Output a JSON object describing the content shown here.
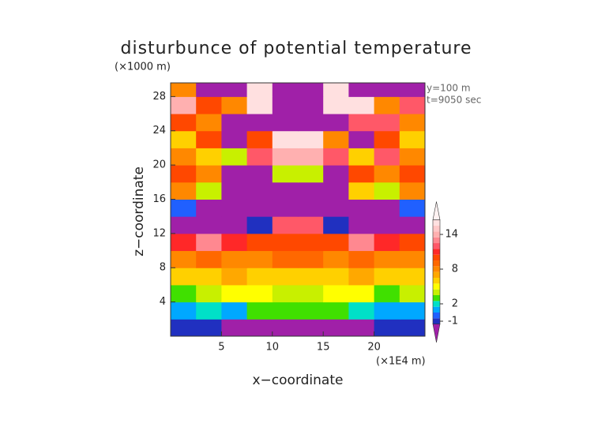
{
  "chart_data": {
    "type": "contour",
    "title": "disturbunce of potential temperature",
    "y_unit": "(×1000 m)",
    "x_unit": "(×1E4 m)",
    "annotations": [
      "y=100 m",
      "t=9050 sec"
    ],
    "xlabel": "x−coordinate",
    "ylabel": "z−coordinate",
    "xlim": [
      0,
      25
    ],
    "ylim": [
      0,
      29.6
    ],
    "xticks": [
      5,
      10,
      15,
      20
    ],
    "yticks": [
      4,
      8,
      12,
      16,
      20,
      24,
      28
    ],
    "x": [
      1.25,
      3.75,
      6.25,
      8.75,
      11.25,
      13.75,
      16.25,
      18.75,
      21.25,
      23.75
    ],
    "y": [
      1,
      3,
      5,
      7,
      9,
      11,
      13,
      15,
      17,
      19,
      21,
      23,
      25,
      27,
      29
    ],
    "z": [
      [
        -1,
        -1,
        -2,
        -2,
        -2,
        -2,
        -2,
        -2,
        -1,
        -1
      ],
      [
        1,
        2,
        1,
        3,
        3,
        3,
        3,
        2,
        1,
        1
      ],
      [
        3,
        4,
        5,
        5,
        4,
        4,
        5,
        5,
        3,
        4
      ],
      [
        6,
        6,
        7,
        6,
        6,
        6,
        6,
        7,
        6,
        6
      ],
      [
        8,
        9,
        8,
        8,
        9,
        9,
        8,
        9,
        8,
        8
      ],
      [
        11,
        13,
        11,
        10,
        10,
        10,
        10,
        13,
        11,
        10
      ],
      [
        -2,
        -2,
        -2,
        -1,
        12,
        12,
        -1,
        -2,
        -2,
        -2
      ],
      [
        0,
        -2,
        -2,
        -2,
        -2,
        -2,
        -2,
        -2,
        -2,
        0
      ],
      [
        8,
        4,
        -2,
        -2,
        -2,
        -2,
        -2,
        6,
        4,
        8
      ],
      [
        10,
        8,
        -2,
        -2,
        4,
        4,
        -2,
        10,
        8,
        10
      ],
      [
        8,
        6,
        4,
        12,
        14,
        14,
        12,
        6,
        12,
        8
      ],
      [
        6,
        10,
        -2,
        10,
        16,
        16,
        8,
        -2,
        10,
        6
      ],
      [
        10,
        8,
        -2,
        -2,
        -2,
        -2,
        -2,
        12,
        12,
        8
      ],
      [
        14,
        10,
        8,
        16,
        -2,
        -2,
        16,
        16,
        8,
        12
      ],
      [
        8,
        -2,
        -2,
        16,
        -2,
        -2,
        16,
        -2,
        -2,
        -2
      ]
    ],
    "colorbar": {
      "levels": [
        -2,
        -1,
        0,
        1,
        2,
        3,
        4,
        5,
        6,
        7,
        8,
        9,
        10,
        11,
        12,
        13,
        14,
        15,
        16,
        17
      ],
      "colors": [
        "#a020a8",
        "#2030c0",
        "#2060ff",
        "#00a8ff",
        "#00e0c8",
        "#40e000",
        "#c8f000",
        "#ffff00",
        "#ffd000",
        "#ffa800",
        "#ff8800",
        "#ff6800",
        "#ff4800",
        "#ff2828",
        "#ff5868",
        "#ff8890",
        "#ffb0b0",
        "#ffc8c8",
        "#ffe0e0",
        "#fff2f2"
      ],
      "ticks": [
        -1,
        2,
        8,
        14
      ]
    }
  }
}
